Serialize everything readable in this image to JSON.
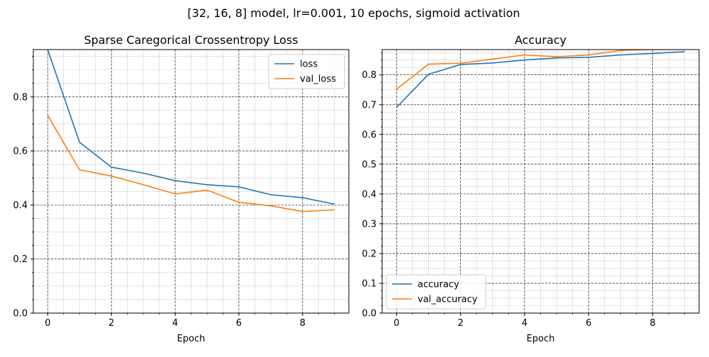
{
  "figure": {
    "suptitle": "[32, 16, 8] model, lr=0.001, 10 epochs, sigmoid activation"
  },
  "chart_data": [
    {
      "type": "line",
      "title": "Sparse Caregorical Crossentropy Loss",
      "xlabel": "Epoch",
      "ylabel": "",
      "x": [
        0,
        1,
        2,
        3,
        4,
        5,
        6,
        7,
        8,
        9
      ],
      "xlim": [
        -0.45,
        9.45
      ],
      "ylim": [
        0,
        0.975
      ],
      "xticks": [
        0,
        2,
        4,
        6,
        8
      ],
      "yticks": [
        0.0,
        0.2,
        0.4,
        0.6,
        0.8
      ],
      "xtick_labels": [
        "0",
        "2",
        "4",
        "6",
        "8"
      ],
      "ytick_labels": [
        "0.0",
        "0.2",
        "0.4",
        "0.6",
        "0.8"
      ],
      "grid": true,
      "legend_position": "top-right",
      "series": [
        {
          "name": "loss",
          "color": "#1f77b4",
          "values": [
            0.975,
            0.632,
            0.54,
            0.518,
            0.49,
            0.475,
            0.467,
            0.438,
            0.427,
            0.403
          ]
        },
        {
          "name": "val_loss",
          "color": "#ff7f0e",
          "values": [
            0.732,
            0.53,
            0.507,
            0.475,
            0.441,
            0.455,
            0.41,
            0.397,
            0.376,
            0.382
          ]
        }
      ]
    },
    {
      "type": "line",
      "title": "Accuracy",
      "xlabel": "Epoch",
      "ylabel": "",
      "x": [
        0,
        1,
        2,
        3,
        4,
        5,
        6,
        7,
        8,
        9
      ],
      "xlim": [
        -0.45,
        9.45
      ],
      "ylim": [
        0,
        0.885
      ],
      "xticks": [
        0,
        2,
        4,
        6,
        8
      ],
      "yticks": [
        0.0,
        0.1,
        0.2,
        0.3,
        0.4,
        0.5,
        0.6,
        0.7,
        0.8
      ],
      "xtick_labels": [
        "0",
        "2",
        "4",
        "6",
        "8"
      ],
      "ytick_labels": [
        "0.0",
        "0.1",
        "0.2",
        "0.3",
        "0.4",
        "0.5",
        "0.6",
        "0.7",
        "0.8"
      ],
      "grid": true,
      "legend_position": "bottom-left",
      "series": [
        {
          "name": "accuracy",
          "color": "#1f77b4",
          "values": [
            0.691,
            0.802,
            0.835,
            0.84,
            0.85,
            0.857,
            0.859,
            0.867,
            0.872,
            0.878
          ]
        },
        {
          "name": "val_accuracy",
          "color": "#ff7f0e",
          "values": [
            0.752,
            0.836,
            0.839,
            0.853,
            0.867,
            0.861,
            0.867,
            0.882,
            0.885,
            0.885
          ]
        }
      ]
    }
  ]
}
